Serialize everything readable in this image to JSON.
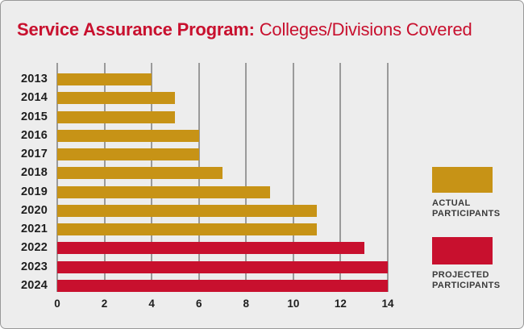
{
  "title": {
    "bold": "Service Assurance Program:",
    "regular": " Colleges/Divisions Covered",
    "color": "#C8102E"
  },
  "chart_data": {
    "type": "bar",
    "orientation": "horizontal",
    "title": "Service Assurance Program: Colleges/Divisions Covered",
    "xlabel": "",
    "ylabel": "",
    "categories": [
      "2013",
      "2014",
      "2015",
      "2016",
      "2017",
      "2018",
      "2019",
      "2020",
      "2021",
      "2022",
      "2023",
      "2024"
    ],
    "values": [
      4,
      5,
      5,
      6,
      6,
      7,
      9,
      11,
      11,
      13,
      14,
      14
    ],
    "bar_series": [
      "actual",
      "actual",
      "actual",
      "actual",
      "actual",
      "actual",
      "actual",
      "actual",
      "actual",
      "projected",
      "projected",
      "projected"
    ],
    "series_colors": {
      "actual": "#C79316",
      "projected": "#C8102E"
    },
    "xlim": [
      0,
      14
    ],
    "xticks": [
      "0",
      "2",
      "4",
      "6",
      "8",
      "10",
      "12",
      "14"
    ],
    "grid": "vertical",
    "gridline_color": "#9A9A9A",
    "legend_position": "right"
  },
  "legend": {
    "items": [
      {
        "label": "ACTUAL PARTICIPANTS",
        "series": "actual",
        "color": "#C79316"
      },
      {
        "label": "PROJECTED PARTICIPANTS",
        "series": "projected",
        "color": "#C8102E"
      }
    ]
  },
  "card": {
    "background": "#EDEDED",
    "border_color": "#999999"
  }
}
